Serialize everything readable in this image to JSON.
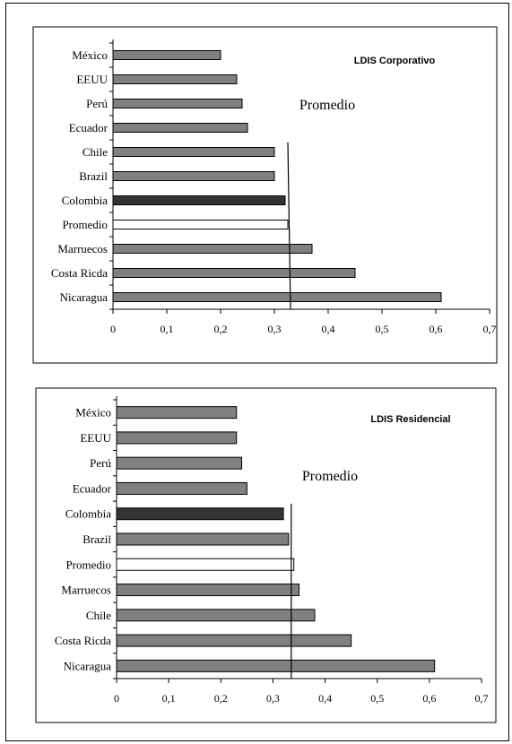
{
  "chart_data": [
    {
      "type": "bar",
      "orientation": "horizontal",
      "title": "LDIS Corporativo",
      "annotation": "Promedio",
      "categories": [
        "México",
        "EEUU",
        "Perú",
        "Ecuador",
        "Chile",
        "Brazil",
        "Colombia",
        "Promedio",
        "Marruecos",
        "Costa Ricda",
        "Nicaragua"
      ],
      "values": [
        0.2,
        0.23,
        0.24,
        0.25,
        0.3,
        0.3,
        0.32,
        0.325,
        0.37,
        0.45,
        0.61
      ],
      "highlight": {
        "Colombia": "#333333",
        "Promedio": "#ffffff"
      },
      "bar_color": "#808080",
      "xlim": [
        0,
        0.7
      ],
      "xticks": [
        "0",
        "0,1",
        "0,2",
        "0,3",
        "0,4",
        "0,5",
        "0,6",
        "0,7"
      ],
      "reference_line": [
        0.325,
        0.33
      ],
      "grid": false
    },
    {
      "type": "bar",
      "orientation": "horizontal",
      "title": "LDIS Residencial",
      "annotation": "Promedio",
      "categories": [
        "México",
        "EEUU",
        "Perú",
        "Ecuador",
        "Colombia",
        "Brazil",
        "Promedio",
        "Marruecos",
        "Chile",
        "Costa Ricda",
        "Nicaragua"
      ],
      "values": [
        0.23,
        0.23,
        0.24,
        0.25,
        0.32,
        0.33,
        0.34,
        0.35,
        0.38,
        0.45,
        0.61
      ],
      "highlight": {
        "Colombia": "#333333",
        "Promedio": "#ffffff"
      },
      "bar_color": "#808080",
      "xlim": [
        0,
        0.7
      ],
      "xticks": [
        "0",
        "0,1",
        "0,2",
        "0,3",
        "0,4",
        "0,5",
        "0,6",
        "0,7"
      ],
      "reference_line": [
        0.335,
        0.335
      ],
      "grid": false
    }
  ]
}
